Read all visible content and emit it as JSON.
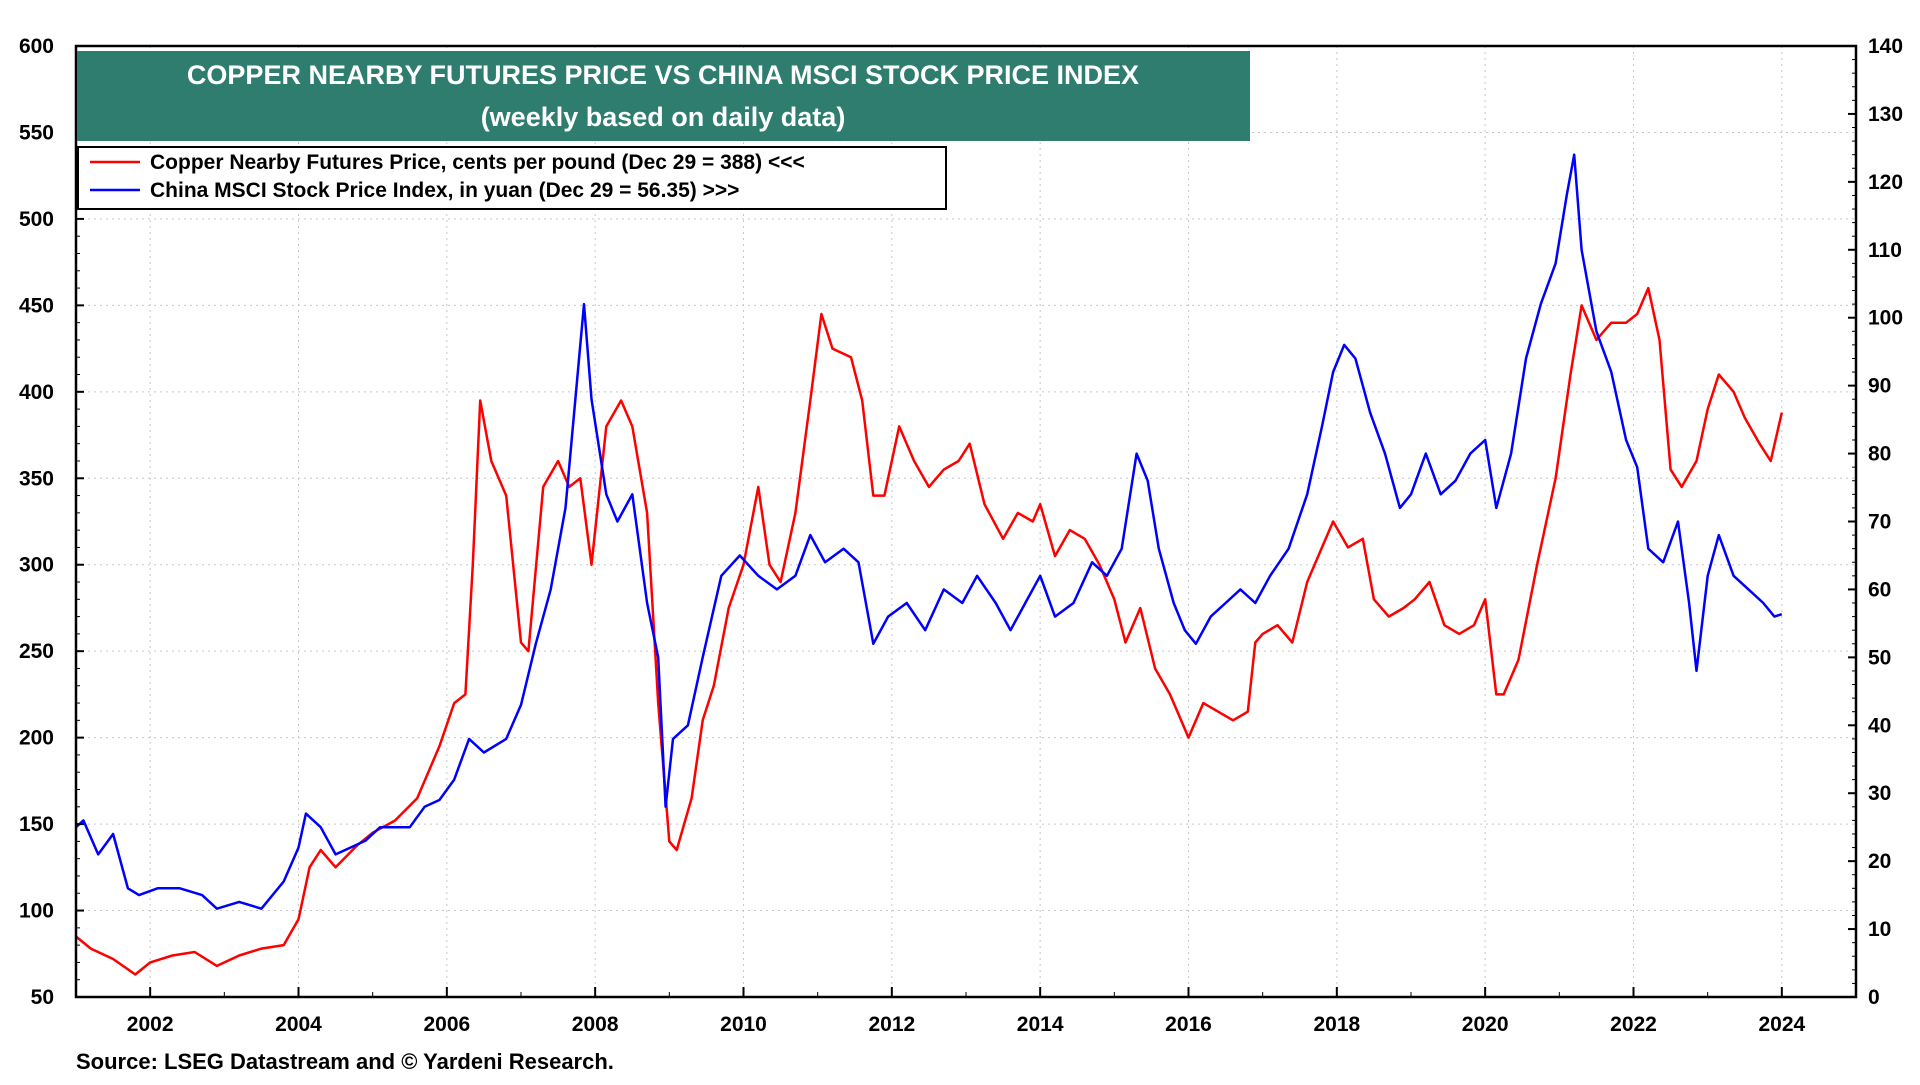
{
  "chart_data": {
    "type": "line",
    "title": "COPPER NEARBY FUTURES PRICE VS CHINA MSCI STOCK PRICE INDEX",
    "subtitle": "(weekly based on daily data)",
    "source": "Source: LSEG Datastream and © Yardeni Research.",
    "x_range": [
      2001.0,
      2025.0
    ],
    "x_ticks": [
      2002,
      2004,
      2006,
      2008,
      2010,
      2012,
      2014,
      2016,
      2018,
      2020,
      2022,
      2024
    ],
    "x_tick_labels": [
      "2002",
      "2004",
      "2006",
      "2008",
      "2010",
      "2012",
      "2014",
      "2016",
      "2018",
      "2020",
      "2022",
      "2024"
    ],
    "y_left": {
      "range": [
        50,
        600
      ],
      "ticks": [
        50,
        100,
        150,
        200,
        250,
        300,
        350,
        400,
        450,
        500,
        550,
        600
      ],
      "tick_labels": [
        "50",
        "100",
        "150",
        "200",
        "250",
        "300",
        "350",
        "400",
        "450",
        "500",
        "550",
        "600"
      ]
    },
    "y_right": {
      "range": [
        0,
        140
      ],
      "ticks": [
        0,
        10,
        20,
        30,
        40,
        50,
        60,
        70,
        80,
        90,
        100,
        110,
        120,
        130,
        140
      ],
      "tick_labels": [
        "0",
        "10",
        "20",
        "30",
        "40",
        "50",
        "60",
        "70",
        "80",
        "90",
        "100",
        "110",
        "120",
        "130",
        "140"
      ]
    },
    "grid": true,
    "legend_position": "top-left",
    "series": [
      {
        "name": "Copper Nearby Futures Price, cents per pound (Dec 29 = 388) <<<",
        "axis": "left",
        "color": "#ff0000",
        "points": [
          [
            2001.0,
            85
          ],
          [
            2001.2,
            78
          ],
          [
            2001.5,
            72
          ],
          [
            2001.8,
            63
          ],
          [
            2002.0,
            70
          ],
          [
            2002.3,
            74
          ],
          [
            2002.6,
            76
          ],
          [
            2002.9,
            68
          ],
          [
            2003.2,
            74
          ],
          [
            2003.5,
            78
          ],
          [
            2003.8,
            80
          ],
          [
            2004.0,
            95
          ],
          [
            2004.15,
            125
          ],
          [
            2004.3,
            135
          ],
          [
            2004.5,
            125
          ],
          [
            2004.8,
            138
          ],
          [
            2005.0,
            145
          ],
          [
            2005.3,
            152
          ],
          [
            2005.6,
            165
          ],
          [
            2005.9,
            195
          ],
          [
            2006.1,
            220
          ],
          [
            2006.25,
            225
          ],
          [
            2006.35,
            300
          ],
          [
            2006.45,
            395
          ],
          [
            2006.6,
            360
          ],
          [
            2006.8,
            340
          ],
          [
            2007.0,
            255
          ],
          [
            2007.1,
            250
          ],
          [
            2007.3,
            345
          ],
          [
            2007.5,
            360
          ],
          [
            2007.65,
            345
          ],
          [
            2007.8,
            350
          ],
          [
            2007.95,
            300
          ],
          [
            2008.15,
            380
          ],
          [
            2008.35,
            395
          ],
          [
            2008.5,
            380
          ],
          [
            2008.7,
            330
          ],
          [
            2008.85,
            220
          ],
          [
            2009.0,
            140
          ],
          [
            2009.1,
            135
          ],
          [
            2009.3,
            165
          ],
          [
            2009.45,
            210
          ],
          [
            2009.6,
            230
          ],
          [
            2009.8,
            275
          ],
          [
            2010.0,
            300
          ],
          [
            2010.2,
            345
          ],
          [
            2010.35,
            300
          ],
          [
            2010.5,
            290
          ],
          [
            2010.7,
            330
          ],
          [
            2010.9,
            395
          ],
          [
            2011.05,
            445
          ],
          [
            2011.2,
            425
          ],
          [
            2011.45,
            420
          ],
          [
            2011.6,
            395
          ],
          [
            2011.75,
            340
          ],
          [
            2011.9,
            340
          ],
          [
            2012.1,
            380
          ],
          [
            2012.3,
            360
          ],
          [
            2012.5,
            345
          ],
          [
            2012.7,
            355
          ],
          [
            2012.9,
            360
          ],
          [
            2013.05,
            370
          ],
          [
            2013.25,
            335
          ],
          [
            2013.5,
            315
          ],
          [
            2013.7,
            330
          ],
          [
            2013.9,
            325
          ],
          [
            2014.0,
            335
          ],
          [
            2014.2,
            305
          ],
          [
            2014.4,
            320
          ],
          [
            2014.6,
            315
          ],
          [
            2014.8,
            300
          ],
          [
            2015.0,
            280
          ],
          [
            2015.15,
            255
          ],
          [
            2015.35,
            275
          ],
          [
            2015.55,
            240
          ],
          [
            2015.75,
            225
          ],
          [
            2015.9,
            210
          ],
          [
            2016.0,
            200
          ],
          [
            2016.2,
            220
          ],
          [
            2016.4,
            215
          ],
          [
            2016.6,
            210
          ],
          [
            2016.8,
            215
          ],
          [
            2016.9,
            255
          ],
          [
            2017.0,
            260
          ],
          [
            2017.2,
            265
          ],
          [
            2017.4,
            255
          ],
          [
            2017.6,
            290
          ],
          [
            2017.8,
            310
          ],
          [
            2017.95,
            325
          ],
          [
            2018.15,
            310
          ],
          [
            2018.35,
            315
          ],
          [
            2018.5,
            280
          ],
          [
            2018.7,
            270
          ],
          [
            2018.9,
            275
          ],
          [
            2019.05,
            280
          ],
          [
            2019.25,
            290
          ],
          [
            2019.45,
            265
          ],
          [
            2019.65,
            260
          ],
          [
            2019.85,
            265
          ],
          [
            2020.0,
            280
          ],
          [
            2020.15,
            225
          ],
          [
            2020.25,
            225
          ],
          [
            2020.45,
            245
          ],
          [
            2020.7,
            300
          ],
          [
            2020.95,
            350
          ],
          [
            2021.15,
            410
          ],
          [
            2021.3,
            450
          ],
          [
            2021.5,
            430
          ],
          [
            2021.7,
            440
          ],
          [
            2021.9,
            440
          ],
          [
            2022.05,
            445
          ],
          [
            2022.2,
            460
          ],
          [
            2022.35,
            430
          ],
          [
            2022.5,
            355
          ],
          [
            2022.65,
            345
          ],
          [
            2022.85,
            360
          ],
          [
            2023.0,
            390
          ],
          [
            2023.15,
            410
          ],
          [
            2023.35,
            400
          ],
          [
            2023.5,
            385
          ],
          [
            2023.7,
            370
          ],
          [
            2023.85,
            360
          ],
          [
            2024.0,
            388
          ]
        ]
      },
      {
        "name": "China MSCI Stock Price Index, in yuan (Dec 29 = 56.35) >>>",
        "axis": "right",
        "color": "#0000ff",
        "points": [
          [
            2001.0,
            25
          ],
          [
            2001.1,
            26
          ],
          [
            2001.3,
            21
          ],
          [
            2001.5,
            24
          ],
          [
            2001.7,
            16
          ],
          [
            2001.85,
            15
          ],
          [
            2002.1,
            16
          ],
          [
            2002.4,
            16
          ],
          [
            2002.7,
            15
          ],
          [
            2002.9,
            13
          ],
          [
            2003.2,
            14
          ],
          [
            2003.5,
            13
          ],
          [
            2003.8,
            17
          ],
          [
            2004.0,
            22
          ],
          [
            2004.1,
            27
          ],
          [
            2004.3,
            25
          ],
          [
            2004.5,
            21
          ],
          [
            2004.7,
            22
          ],
          [
            2004.9,
            23
          ],
          [
            2005.1,
            25
          ],
          [
            2005.3,
            25
          ],
          [
            2005.5,
            25
          ],
          [
            2005.7,
            28
          ],
          [
            2005.9,
            29
          ],
          [
            2006.1,
            32
          ],
          [
            2006.3,
            38
          ],
          [
            2006.5,
            36
          ],
          [
            2006.8,
            38
          ],
          [
            2007.0,
            43
          ],
          [
            2007.2,
            52
          ],
          [
            2007.4,
            60
          ],
          [
            2007.6,
            72
          ],
          [
            2007.75,
            90
          ],
          [
            2007.85,
            102
          ],
          [
            2007.95,
            88
          ],
          [
            2008.15,
            74
          ],
          [
            2008.3,
            70
          ],
          [
            2008.5,
            74
          ],
          [
            2008.7,
            58
          ],
          [
            2008.85,
            50
          ],
          [
            2008.95,
            28
          ],
          [
            2009.05,
            38
          ],
          [
            2009.25,
            40
          ],
          [
            2009.45,
            50
          ],
          [
            2009.7,
            62
          ],
          [
            2009.95,
            65
          ],
          [
            2010.2,
            62
          ],
          [
            2010.45,
            60
          ],
          [
            2010.7,
            62
          ],
          [
            2010.9,
            68
          ],
          [
            2011.1,
            64
          ],
          [
            2011.35,
            66
          ],
          [
            2011.55,
            64
          ],
          [
            2011.75,
            52
          ],
          [
            2011.95,
            56
          ],
          [
            2012.2,
            58
          ],
          [
            2012.45,
            54
          ],
          [
            2012.7,
            60
          ],
          [
            2012.95,
            58
          ],
          [
            2013.15,
            62
          ],
          [
            2013.4,
            58
          ],
          [
            2013.6,
            54
          ],
          [
            2013.8,
            58
          ],
          [
            2014.0,
            62
          ],
          [
            2014.2,
            56
          ],
          [
            2014.45,
            58
          ],
          [
            2014.7,
            64
          ],
          [
            2014.9,
            62
          ],
          [
            2015.1,
            66
          ],
          [
            2015.3,
            80
          ],
          [
            2015.45,
            76
          ],
          [
            2015.6,
            66
          ],
          [
            2015.8,
            58
          ],
          [
            2015.95,
            54
          ],
          [
            2016.1,
            52
          ],
          [
            2016.3,
            56
          ],
          [
            2016.5,
            58
          ],
          [
            2016.7,
            60
          ],
          [
            2016.9,
            58
          ],
          [
            2017.1,
            62
          ],
          [
            2017.35,
            66
          ],
          [
            2017.6,
            74
          ],
          [
            2017.8,
            84
          ],
          [
            2017.95,
            92
          ],
          [
            2018.1,
            96
          ],
          [
            2018.25,
            94
          ],
          [
            2018.45,
            86
          ],
          [
            2018.65,
            80
          ],
          [
            2018.85,
            72
          ],
          [
            2019.0,
            74
          ],
          [
            2019.2,
            80
          ],
          [
            2019.4,
            74
          ],
          [
            2019.6,
            76
          ],
          [
            2019.8,
            80
          ],
          [
            2020.0,
            82
          ],
          [
            2020.15,
            72
          ],
          [
            2020.35,
            80
          ],
          [
            2020.55,
            94
          ],
          [
            2020.75,
            102
          ],
          [
            2020.95,
            108
          ],
          [
            2021.1,
            118
          ],
          [
            2021.2,
            124
          ],
          [
            2021.3,
            110
          ],
          [
            2021.5,
            98
          ],
          [
            2021.7,
            92
          ],
          [
            2021.9,
            82
          ],
          [
            2022.05,
            78
          ],
          [
            2022.2,
            66
          ],
          [
            2022.4,
            64
          ],
          [
            2022.6,
            70
          ],
          [
            2022.75,
            58
          ],
          [
            2022.85,
            48
          ],
          [
            2023.0,
            62
          ],
          [
            2023.15,
            68
          ],
          [
            2023.35,
            62
          ],
          [
            2023.55,
            60
          ],
          [
            2023.75,
            58
          ],
          [
            2023.9,
            56
          ],
          [
            2024.0,
            56.35
          ]
        ]
      }
    ]
  }
}
